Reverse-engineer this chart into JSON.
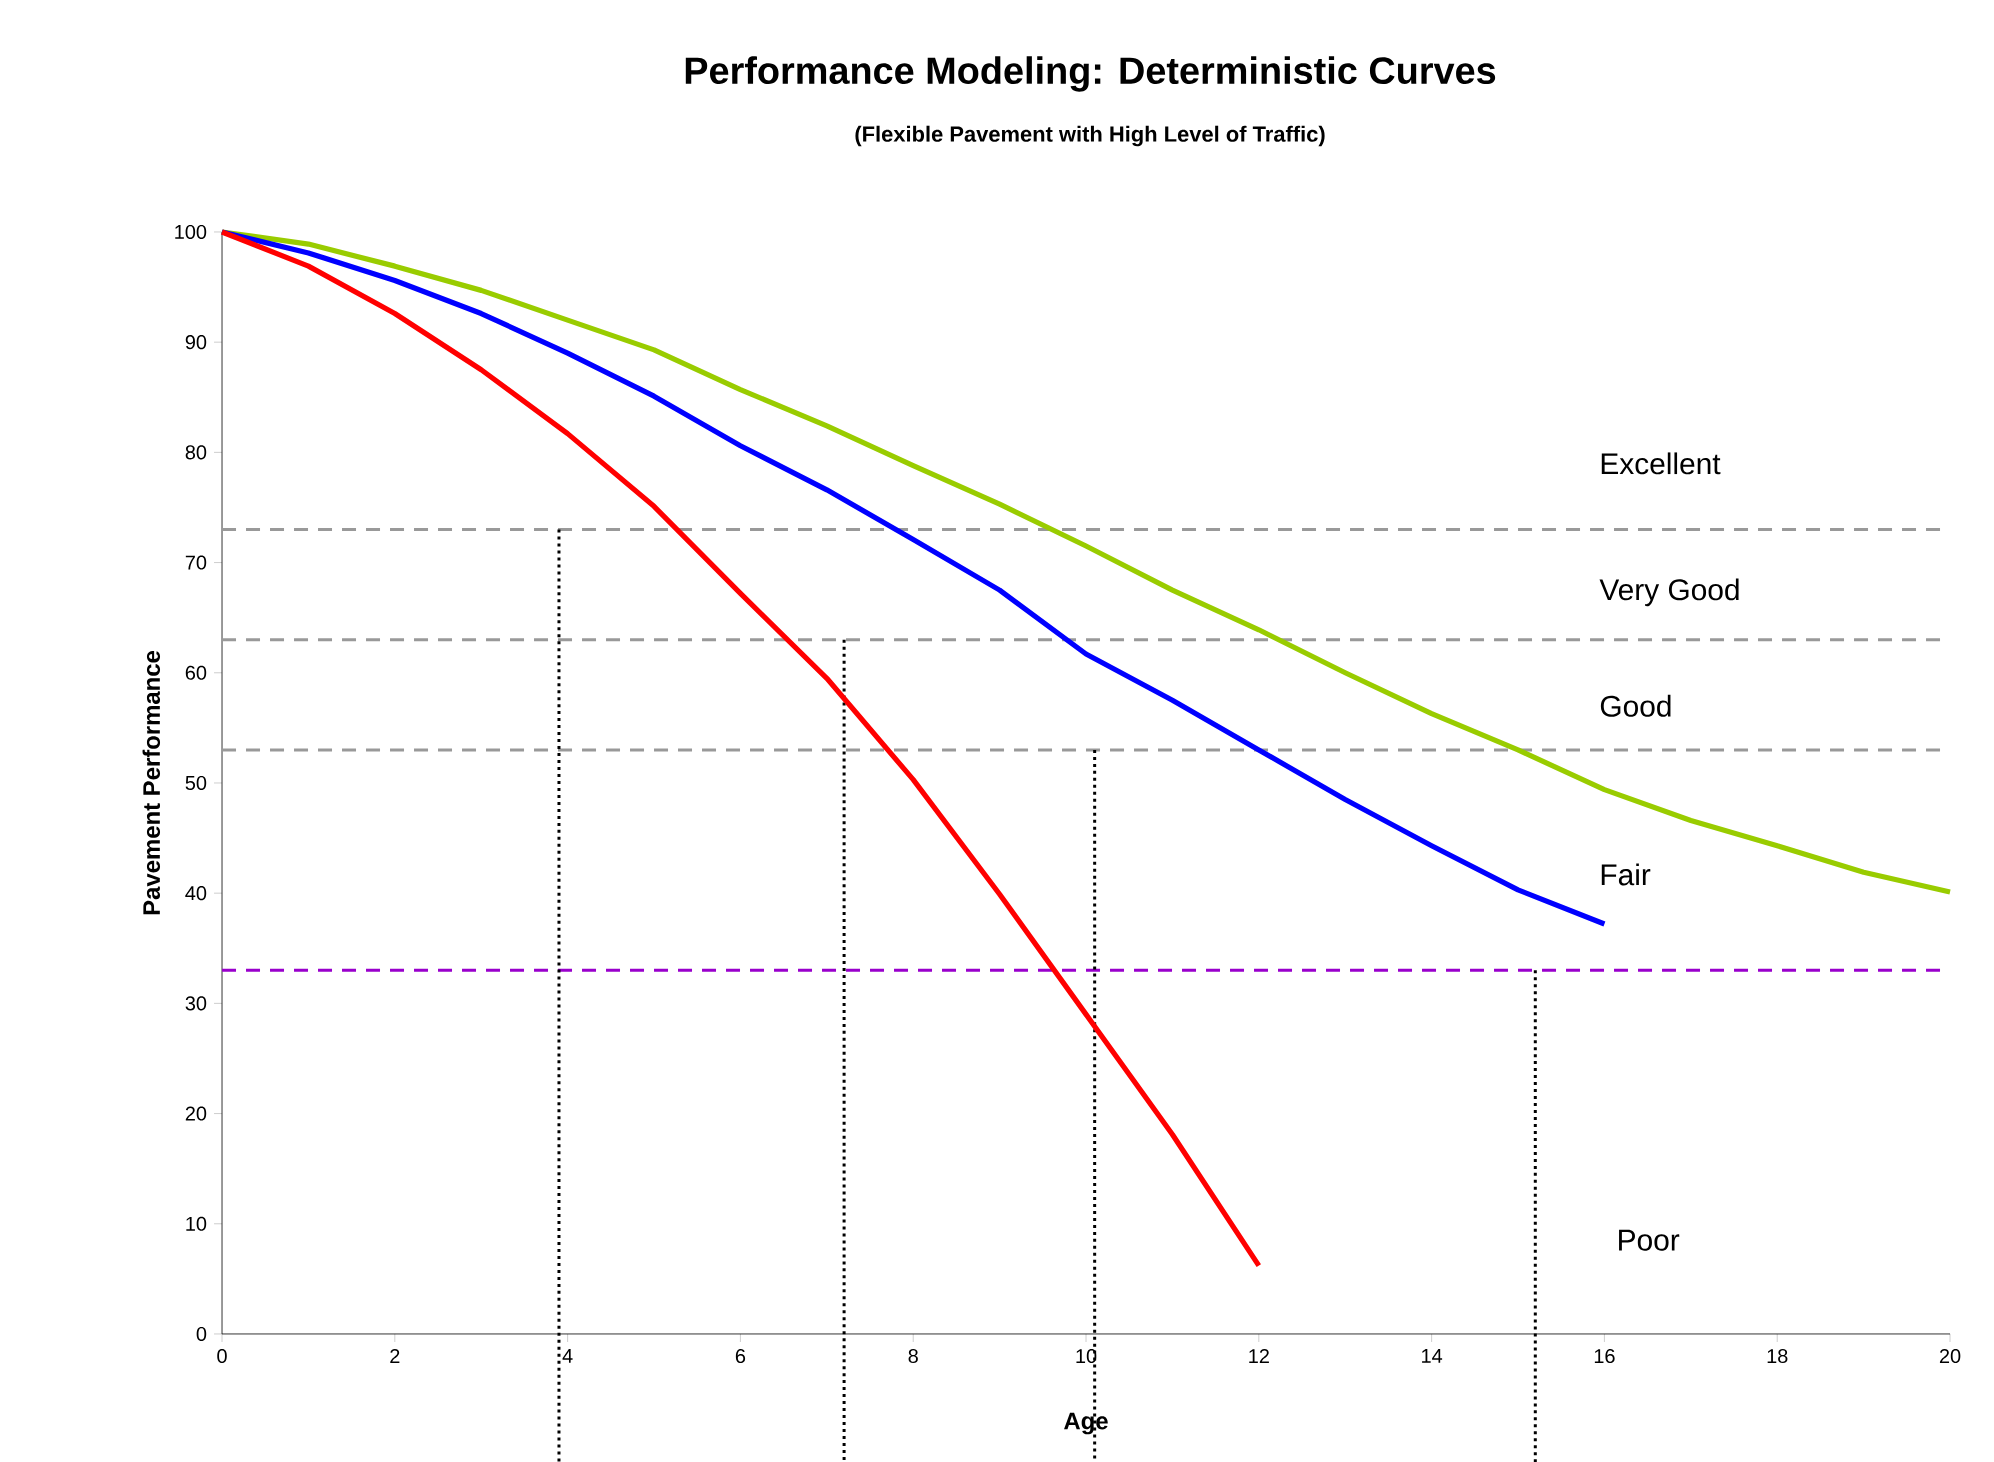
{
  "chart_data": {
    "type": "line",
    "title": "Performance Modeling: Deterministic Curves",
    "subtitle": "(Flexible Pavement with High Level of Traffic)",
    "xlabel": "Age",
    "ylabel": "Pavement Performance",
    "x": [
      0,
      1,
      2,
      3,
      4,
      5,
      6,
      7,
      8,
      9,
      10,
      11,
      12,
      13,
      14,
      15,
      16,
      17,
      18,
      19,
      20
    ],
    "series": [
      {
        "color": "#99cc00",
        "values": [
          100,
          98.9,
          96.9,
          94.7,
          92.0,
          89.3,
          85.7,
          82.4,
          78.8,
          75.3,
          71.5,
          67.5,
          63.9,
          60.0,
          56.3,
          53.0,
          49.4,
          46.6,
          44.3,
          41.9,
          40.1
        ]
      },
      {
        "color": "#0000ff",
        "values": [
          100,
          98.1,
          95.6,
          92.6,
          89.0,
          85.1,
          80.6,
          76.6,
          72.1,
          67.5,
          61.7,
          57.5,
          53.0,
          48.5,
          44.3,
          40.3,
          37.2,
          null,
          null,
          null,
          null
        ]
      },
      {
        "color": "#ff0000",
        "values": [
          100,
          96.9,
          92.6,
          87.5,
          81.7,
          75.1,
          67.2,
          59.5,
          50.3,
          39.9,
          29.0,
          18.1,
          6.2,
          null,
          null,
          null,
          null,
          null,
          null,
          null,
          null
        ]
      }
    ],
    "xlim": [
      0,
      20
    ],
    "ylim": [
      0,
      100
    ],
    "xticks": [
      0,
      2,
      4,
      6,
      8,
      10,
      12,
      14,
      16,
      18,
      20
    ],
    "yticks": [
      0,
      10,
      20,
      30,
      40,
      50,
      60,
      70,
      80,
      90,
      100
    ],
    "marker": "none",
    "line_style": "solid",
    "grid": false,
    "ref_lines": [
      {
        "axis": "y",
        "value": 73,
        "color": "#999999",
        "line_style": "dashed"
      },
      {
        "axis": "y",
        "value": 63,
        "color": "#999999",
        "line_style": "dashed"
      },
      {
        "axis": "y",
        "value": 53,
        "color": "#999999",
        "line_style": "dashed"
      },
      {
        "axis": "y",
        "value": 33,
        "color": "#9900cc",
        "line_style": "dashed"
      },
      {
        "axis": "x",
        "value": 3.9,
        "color": "#000000",
        "line_style": "dotted"
      },
      {
        "axis": "x",
        "value": 7.2,
        "color": "#000000",
        "line_style": "dotted"
      },
      {
        "axis": "x",
        "value": 10.1,
        "color": "#000000",
        "line_style": "dotted"
      },
      {
        "axis": "x",
        "value": 15.2,
        "color": "#000000",
        "line_style": "dotted"
      }
    ],
    "annotations": [
      "Excellent",
      "Very Good",
      "Good",
      "Fair",
      "Poor"
    ]
  }
}
